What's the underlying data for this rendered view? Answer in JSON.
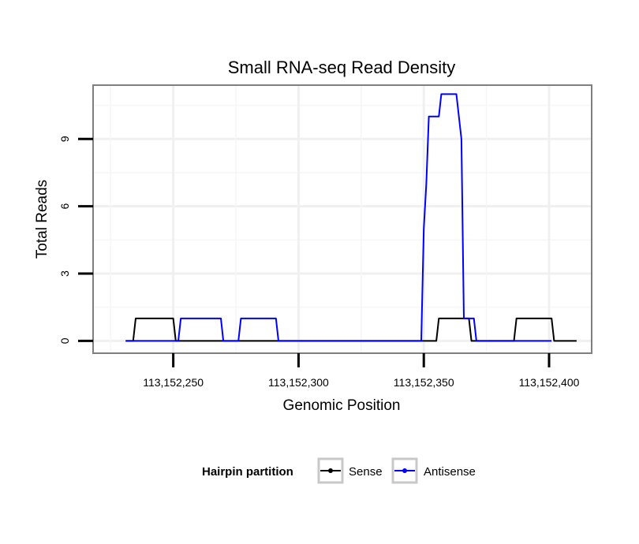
{
  "chart_data": {
    "type": "line",
    "title": "Small RNA-seq Read Density",
    "xlabel": "Genomic Position",
    "ylabel": "Total Reads",
    "xlim": [
      113152218,
      113152417
    ],
    "ylim": [
      -0.55,
      11.4
    ],
    "x_ticks": [
      113152250,
      113152300,
      113152350,
      113152400
    ],
    "x_tick_labels": [
      "113,152,250",
      "113,152,300",
      "113,152,350",
      "113,152,400"
    ],
    "y_ticks": [
      0,
      3,
      6,
      9
    ],
    "y_tick_labels": [
      "0",
      "3",
      "6",
      "9"
    ],
    "grid": true,
    "legend": {
      "title": "Hairpin partition",
      "position": "bottom",
      "entries": [
        "Sense",
        "Antisense"
      ]
    },
    "series": [
      {
        "name": "Sense",
        "color": "#000000",
        "x": [
          113152231,
          113152234,
          113152235,
          113152249,
          113152250,
          113152251,
          113152355,
          113152356,
          113152368,
          113152369,
          113152386,
          113152387,
          113152401,
          113152402,
          113152411
        ],
        "y": [
          0,
          0,
          1,
          1,
          1,
          0,
          0,
          1,
          1,
          0,
          0,
          1,
          1,
          0,
          0
        ]
      },
      {
        "name": "Antisense",
        "color": "#0000ff",
        "x": [
          113152231,
          113152252,
          113152253,
          113152269,
          113152270,
          113152276,
          113152277,
          113152291,
          113152292,
          113152349,
          113152350,
          113152351,
          113152352,
          113152356,
          113152357,
          113152363,
          113152365,
          113152366,
          113152367,
          113152370,
          113152371,
          113152401
        ],
        "y": [
          0,
          0,
          1,
          1,
          0,
          0,
          1,
          1,
          0,
          0,
          5,
          7,
          10,
          10,
          11,
          11,
          9,
          1,
          1,
          1,
          0,
          0
        ]
      }
    ]
  }
}
